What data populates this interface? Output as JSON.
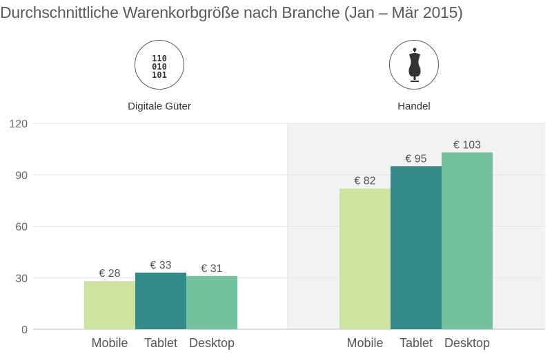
{
  "chart_data": {
    "type": "bar",
    "title": "Durchschnittliche Warenkorbgröße nach Branche (Jan – Mär 2015)",
    "groups": [
      {
        "name": "Digitale Güter",
        "icon": "binary-code-icon",
        "categories": [
          "Mobile",
          "Tablet",
          "Desktop"
        ],
        "values": [
          28,
          33,
          31
        ],
        "labels": [
          "€ 28",
          "€ 33",
          "€ 31"
        ]
      },
      {
        "name": "Handel",
        "icon": "dress-form-icon",
        "categories": [
          "Mobile",
          "Tablet",
          "Desktop"
        ],
        "values": [
          82,
          95,
          103
        ],
        "labels": [
          "€ 82",
          "€ 95",
          "€ 103"
        ]
      }
    ],
    "ylim": [
      0,
      120
    ],
    "yticks": [
      "0",
      "30",
      "60",
      "90",
      "120"
    ],
    "grid": true,
    "colors": {
      "Mobile": "#cfe3a0",
      "Tablet": "#338a88",
      "Desktop": "#74c29f",
      "second_panel_bg": "#f2f2f3"
    }
  },
  "binary_icon_text": [
    "110",
    "010",
    "101"
  ]
}
